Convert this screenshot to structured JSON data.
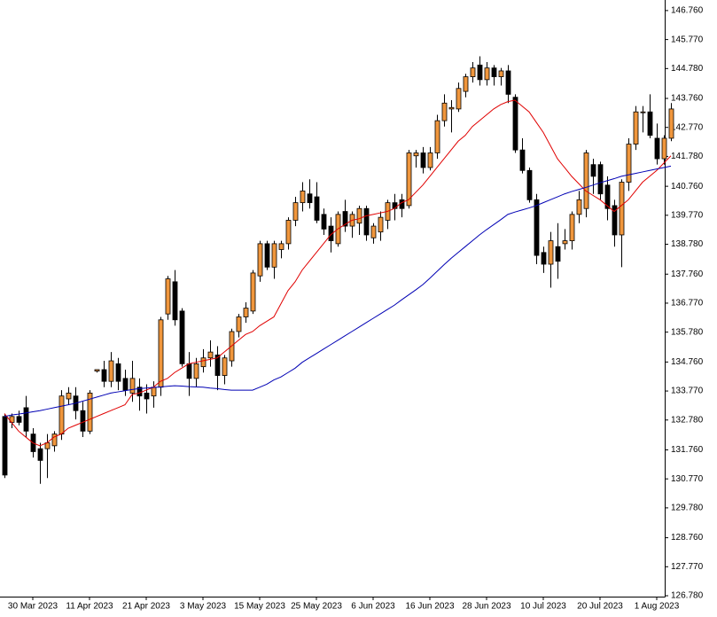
{
  "chart_data": {
    "type": "candlestick",
    "categories": [
      null,
      null,
      null,
      null,
      "30 Mar 2023",
      null,
      null,
      null,
      null,
      null,
      null,
      null,
      "11 Apr 2023",
      null,
      null,
      null,
      null,
      null,
      null,
      null,
      "21 Apr 2023",
      null,
      null,
      null,
      null,
      null,
      null,
      null,
      "3 May 2023",
      null,
      null,
      null,
      null,
      null,
      null,
      null,
      "15 May 2023",
      null,
      null,
      null,
      null,
      null,
      null,
      null,
      "25 May 2023",
      null,
      null,
      null,
      null,
      null,
      null,
      null,
      "6 Jun 2023",
      null,
      null,
      null,
      null,
      null,
      null,
      null,
      "16 Jun 2023",
      null,
      null,
      null,
      null,
      null,
      null,
      null,
      "28 Jun 2023",
      null,
      null,
      null,
      null,
      null,
      null,
      null,
      "10 Jul 2023",
      null,
      null,
      null,
      null,
      null,
      null,
      null,
      "20 Jul 2023",
      null,
      null,
      null,
      null,
      null,
      null,
      null,
      "1 Aug 2023",
      null,
      null
    ],
    "open": [
      132.9,
      132.7,
      132.9,
      133.2,
      132.3,
      131.8,
      131.8,
      131.9,
      132.3,
      133.5,
      133.6,
      133.1,
      132.4,
      134.45,
      134.5,
      134.1,
      134.7,
      134.2,
      133.7,
      133.9,
      133.7,
      133.6,
      133.9,
      136.4,
      137.5,
      136.5,
      134.7,
      134.2,
      134.6,
      134.9,
      135.0,
      134.3,
      134.8,
      135.8,
      136.3,
      136.5,
      137.7,
      138.8,
      138.0,
      138.6,
      138.8,
      139.6,
      140.2,
      140.5,
      140.4,
      139.8,
      139.4,
      138.8,
      139.9,
      139.4,
      139.5,
      140.0,
      139.0,
      139.2,
      139.6,
      140.2,
      140.3,
      140.1,
      141.8,
      141.9,
      141.4,
      141.9,
      143.0,
      143.4,
      143.4,
      144.0,
      144.5,
      144.9,
      144.4,
      144.8,
      144.5,
      144.7,
      143.8,
      142.0,
      141.3,
      140.3,
      138.5,
      138.1,
      138.7,
      138.8,
      138.9,
      139.8,
      140.0,
      141.5,
      141.5,
      140.8,
      140.1,
      139.1,
      140.9,
      142.2,
      143.3,
      143.3,
      142.4,
      141.7,
      142.4
    ],
    "high": [
      133.0,
      133.0,
      133.1,
      133.6,
      132.5,
      132.0,
      132.3,
      132.4,
      133.8,
      133.9,
      133.9,
      133.4,
      133.8,
      134.5,
      134.8,
      135.1,
      134.9,
      134.5,
      134.8,
      134.2,
      134.0,
      134.1,
      136.3,
      137.7,
      137.9,
      136.6,
      135.1,
      134.9,
      135.2,
      135.5,
      135.3,
      135.0,
      135.9,
      136.4,
      136.8,
      137.9,
      138.9,
      138.9,
      138.9,
      138.9,
      139.7,
      140.4,
      140.9,
      141.0,
      140.9,
      140.0,
      139.7,
      139.9,
      140.3,
      139.9,
      140.1,
      140.1,
      139.5,
      139.9,
      140.3,
      140.5,
      140.5,
      142.0,
      142.0,
      142.1,
      142.1,
      143.2,
      143.9,
      143.7,
      144.3,
      144.6,
      145.0,
      145.2,
      145.0,
      144.9,
      144.8,
      144.9,
      143.9,
      142.4,
      141.4,
      140.5,
      138.7,
      139.2,
      139.5,
      139.3,
      139.9,
      140.6,
      142.0,
      141.7,
      141.6,
      141.1,
      140.3,
      141.0,
      142.4,
      143.5,
      143.5,
      143.9,
      142.9,
      142.5,
      143.6
    ],
    "low": [
      130.8,
      132.5,
      132.6,
      132.2,
      131.5,
      130.6,
      130.8,
      131.7,
      132.1,
      133.3,
      132.8,
      132.2,
      132.3,
      134.4,
      133.9,
      133.9,
      133.8,
      133.6,
      133.4,
      133.1,
      133.0,
      133.2,
      133.6,
      136.2,
      136.0,
      134.6,
      133.6,
      133.9,
      134.4,
      134.6,
      133.8,
      134.0,
      134.6,
      135.6,
      136.1,
      136.4,
      137.5,
      137.9,
      137.6,
      138.3,
      138.6,
      139.4,
      139.9,
      140.0,
      139.5,
      139.1,
      138.5,
      138.7,
      139.2,
      139.0,
      139.1,
      138.9,
      138.8,
      138.9,
      139.3,
      139.6,
      139.7,
      140.0,
      141.4,
      141.2,
      141.3,
      141.7,
      142.8,
      142.6,
      143.3,
      143.8,
      144.3,
      144.2,
      144.2,
      144.2,
      144.2,
      143.6,
      141.9,
      141.2,
      140.2,
      138.1,
      137.8,
      137.3,
      137.6,
      138.6,
      138.6,
      139.5,
      139.7,
      140.5,
      140.3,
      139.6,
      138.7,
      138.0,
      140.6,
      142.0,
      142.6,
      142.4,
      141.5,
      141.5,
      142.3
    ],
    "close": [
      130.9,
      132.9,
      132.7,
      132.4,
      131.7,
      131.4,
      132.0,
      132.3,
      133.6,
      133.7,
      133.1,
      132.4,
      133.7,
      134.5,
      134.1,
      134.8,
      134.1,
      133.8,
      134.2,
      133.6,
      133.5,
      133.9,
      136.2,
      137.6,
      136.2,
      134.7,
      134.2,
      134.7,
      134.9,
      135.1,
      134.3,
      134.9,
      135.8,
      136.3,
      136.6,
      137.8,
      138.8,
      138.0,
      138.8,
      138.8,
      139.6,
      140.2,
      140.6,
      140.2,
      139.6,
      139.3,
      138.9,
      139.8,
      139.4,
      139.8,
      140.0,
      139.1,
      139.4,
      139.7,
      140.2,
      140.0,
      140.0,
      141.9,
      141.9,
      141.4,
      141.9,
      143.0,
      143.6,
      143.45,
      144.1,
      144.5,
      144.8,
      144.4,
      144.8,
      144.5,
      144.7,
      143.9,
      142.0,
      141.3,
      140.3,
      138.4,
      138.1,
      138.9,
      138.2,
      138.9,
      139.8,
      140.3,
      141.9,
      141.1,
      140.5,
      140.0,
      139.1,
      140.9,
      142.2,
      143.3,
      143.3,
      142.5,
      141.7,
      142.4,
      143.4
    ],
    "up_color": "#f0963c",
    "down_color": "#000000",
    "lines": [
      {
        "color": "#e00000",
        "values": [
          133.0,
          132.7,
          132.4,
          132.2,
          132.0,
          131.9,
          132.0,
          132.2,
          132.3,
          132.5,
          132.6,
          132.7,
          132.8,
          132.9,
          133.0,
          133.1,
          133.2,
          133.3,
          133.65,
          133.7,
          133.8,
          133.9,
          134.1,
          134.2,
          134.4,
          134.55,
          134.7,
          134.75,
          134.8,
          134.85,
          134.9,
          135.1,
          135.3,
          135.5,
          135.7,
          135.8,
          136.0,
          136.15,
          136.3,
          136.75,
          137.2,
          137.5,
          137.9,
          138.2,
          138.5,
          138.8,
          139.1,
          139.3,
          139.45,
          139.6,
          139.65,
          139.75,
          139.8,
          139.85,
          139.9,
          140.0,
          140.2,
          140.3,
          140.55,
          140.8,
          141.1,
          141.4,
          141.7,
          142.0,
          142.3,
          142.5,
          142.8,
          143.0,
          143.2,
          143.4,
          143.55,
          143.65,
          143.7,
          143.5,
          143.3,
          142.95,
          142.6,
          142.15,
          141.7,
          141.4,
          141.1,
          140.85,
          140.6,
          140.45,
          140.3,
          140.1,
          139.9,
          140.1,
          140.3,
          140.6,
          140.9,
          141.1,
          141.3,
          141.55,
          141.8
        ]
      },
      {
        "color": "#0000b4",
        "values": [
          132.9,
          132.95,
          132.98,
          133.02,
          133.06,
          133.1,
          133.15,
          133.2,
          133.25,
          133.3,
          133.35,
          133.42,
          133.49,
          133.56,
          133.63,
          133.7,
          133.74,
          133.78,
          133.82,
          133.85,
          133.87,
          133.89,
          133.91,
          133.93,
          133.95,
          133.94,
          133.92,
          133.91,
          133.9,
          133.87,
          133.85,
          133.82,
          133.8,
          133.8,
          133.8,
          133.8,
          133.9,
          134.0,
          134.15,
          134.25,
          134.4,
          134.55,
          134.75,
          134.9,
          135.05,
          135.2,
          135.35,
          135.5,
          135.65,
          135.8,
          135.95,
          136.1,
          136.25,
          136.4,
          136.55,
          136.7,
          136.88,
          137.05,
          137.22,
          137.4,
          137.62,
          137.85,
          138.08,
          138.3,
          138.5,
          138.7,
          138.9,
          139.1,
          139.28,
          139.45,
          139.62,
          139.8,
          139.88,
          139.95,
          140.02,
          140.1,
          140.2,
          140.3,
          140.4,
          140.5,
          140.58,
          140.65,
          140.72,
          140.8,
          140.88,
          140.95,
          141.02,
          141.1,
          141.15,
          141.2,
          141.25,
          141.3,
          141.35,
          141.4,
          141.45
        ]
      }
    ],
    "ylim": [
      126.75,
      147.09
    ],
    "yticks": [
      {
        "value": 146.76,
        "label": "146.760"
      },
      {
        "value": 145.77,
        "label": "145.770"
      },
      {
        "value": 144.78,
        "label": "144.780"
      },
      {
        "value": 143.76,
        "label": "143.760"
      },
      {
        "value": 142.77,
        "label": "142.770"
      },
      {
        "value": 141.78,
        "label": "141.780"
      },
      {
        "value": 140.76,
        "label": "140.760"
      },
      {
        "value": 139.77,
        "label": "139.770"
      },
      {
        "value": 138.78,
        "label": "138.780"
      },
      {
        "value": 137.76,
        "label": "137.760"
      },
      {
        "value": 136.77,
        "label": "136.770"
      },
      {
        "value": 135.78,
        "label": "135.780"
      },
      {
        "value": 134.76,
        "label": "134.760"
      },
      {
        "value": 133.77,
        "label": "133.770"
      },
      {
        "value": 132.78,
        "label": "132.780"
      },
      {
        "value": 131.76,
        "label": "131.760"
      },
      {
        "value": 130.77,
        "label": "130.770"
      },
      {
        "value": 129.78,
        "label": "129.780"
      },
      {
        "value": 128.76,
        "label": "128.760"
      },
      {
        "value": 127.77,
        "label": "127.770"
      },
      {
        "value": 126.78,
        "label": "126.780"
      }
    ],
    "grid": false
  }
}
